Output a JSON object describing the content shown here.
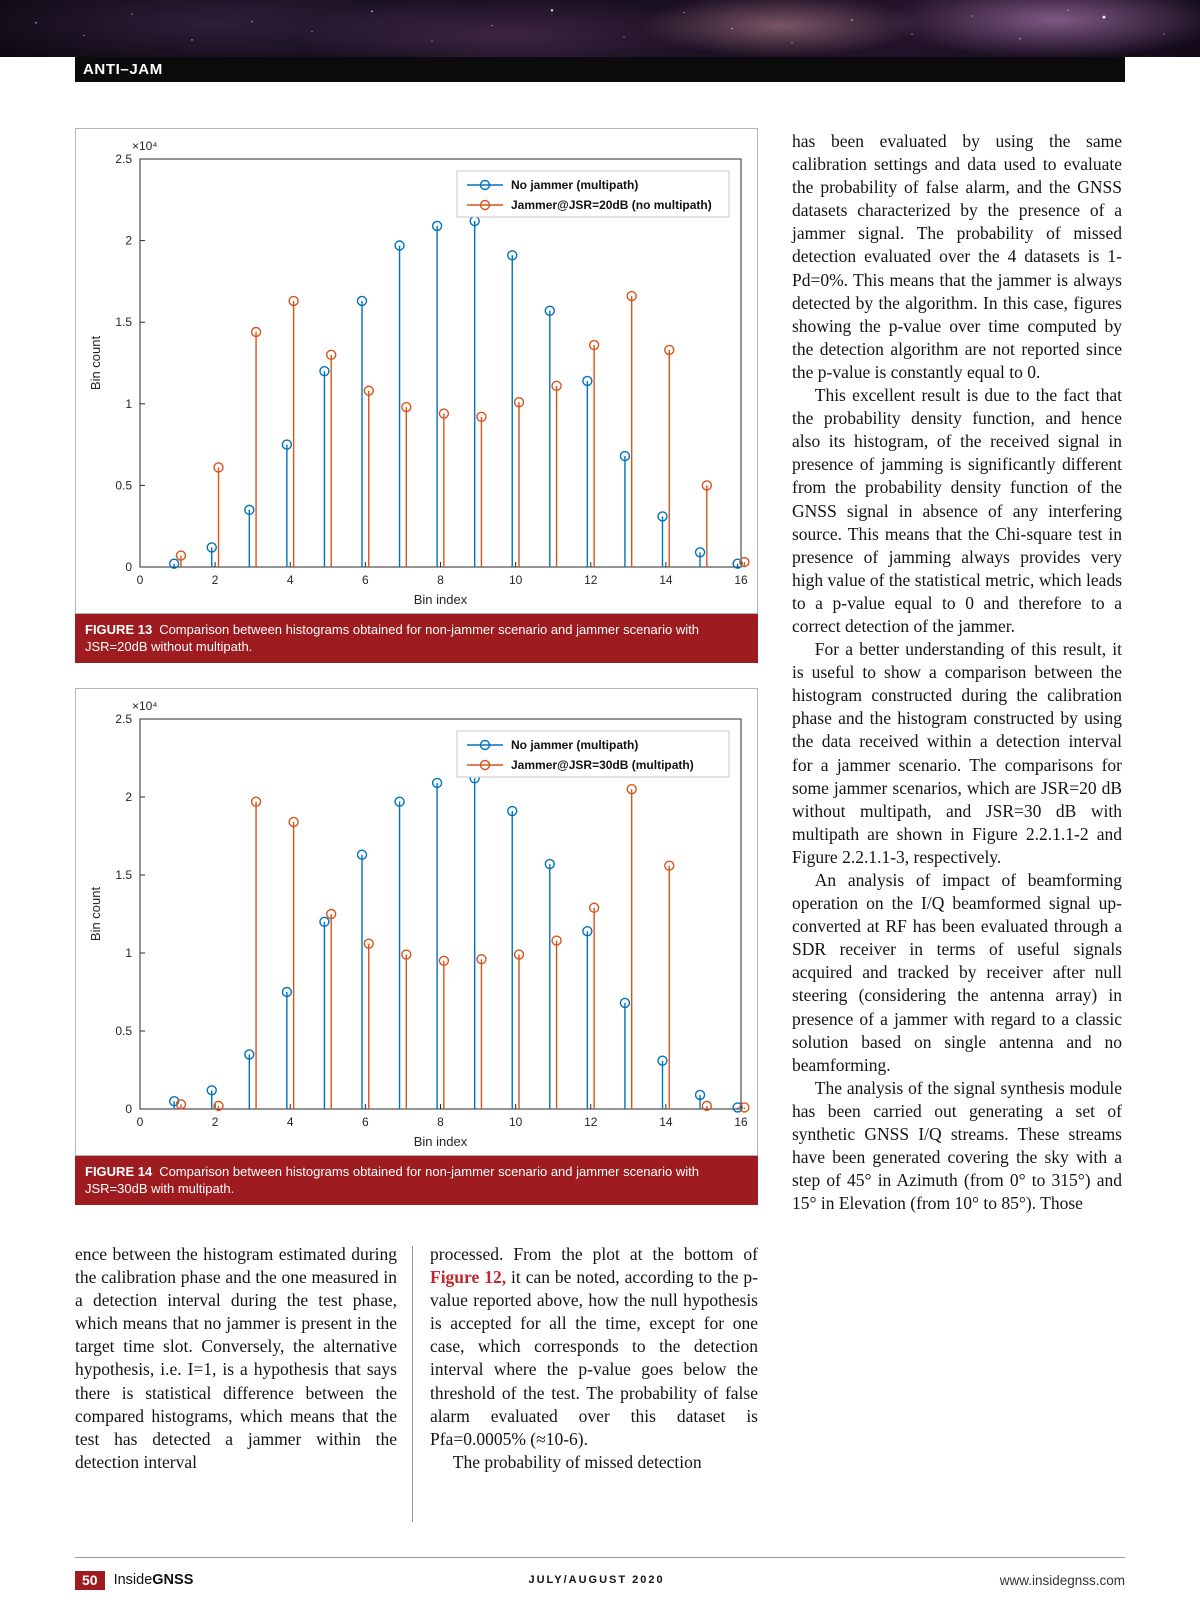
{
  "header": {
    "section_label": "ANTI–JAM"
  },
  "figures": [
    {
      "label": "FIGURE 13",
      "caption": "Comparison between histograms obtained for non-jammer scenario and jammer scenario with JSR=20dB without multipath."
    },
    {
      "label": "FIGURE 14",
      "caption": "Comparison between histograms obtained for non-jammer scenario and jammer scenario with JSR=30dB with multipath."
    }
  ],
  "chart_data": [
    {
      "type": "stem",
      "title": "",
      "xlabel": "Bin index",
      "ylabel": "Bin count",
      "y_exponent_label": "×10⁴",
      "xlim": [
        0,
        16
      ],
      "ylim": [
        0,
        2.5
      ],
      "xticks": [
        0,
        2,
        4,
        6,
        8,
        10,
        12,
        14,
        16
      ],
      "yticks": [
        0,
        0.5,
        1,
        1.5,
        2,
        2.5
      ],
      "legend_position": "top-right",
      "x": [
        1,
        2,
        3,
        4,
        5,
        6,
        7,
        8,
        9,
        10,
        11,
        12,
        13,
        14,
        15,
        16
      ],
      "series": [
        {
          "name": "No jammer (multipath)",
          "color": "#0072BD",
          "values": [
            0.02,
            0.12,
            0.35,
            0.75,
            1.2,
            1.63,
            1.97,
            2.09,
            2.12,
            1.91,
            1.57,
            1.14,
            0.68,
            0.31,
            0.09,
            0.02
          ]
        },
        {
          "name": "Jammer@JSR=20dB (no multipath)",
          "color": "#D95319",
          "values": [
            0.07,
            0.61,
            1.44,
            1.63,
            1.3,
            1.08,
            0.98,
            0.94,
            0.92,
            1.01,
            1.11,
            1.36,
            1.66,
            1.33,
            0.5,
            0.03
          ]
        }
      ]
    },
    {
      "type": "stem",
      "title": "",
      "xlabel": "Bin index",
      "ylabel": "Bin count",
      "y_exponent_label": "×10⁴",
      "xlim": [
        0,
        16
      ],
      "ylim": [
        0,
        2.5
      ],
      "xticks": [
        0,
        2,
        4,
        6,
        8,
        10,
        12,
        14,
        16
      ],
      "yticks": [
        0,
        0.5,
        1,
        1.5,
        2,
        2.5
      ],
      "legend_position": "top-right",
      "x": [
        1,
        2,
        3,
        4,
        5,
        6,
        7,
        8,
        9,
        10,
        11,
        12,
        13,
        14,
        15,
        16
      ],
      "series": [
        {
          "name": "No jammer (multipath)",
          "color": "#0072BD",
          "values": [
            0.05,
            0.12,
            0.35,
            0.75,
            1.2,
            1.63,
            1.97,
            2.09,
            2.12,
            1.91,
            1.57,
            1.14,
            0.68,
            0.31,
            0.09,
            0.01
          ]
        },
        {
          "name": "Jammer@JSR=30dB (multipath)",
          "color": "#D95319",
          "values": [
            0.03,
            0.02,
            1.97,
            1.84,
            1.25,
            1.06,
            0.99,
            0.95,
            0.96,
            0.99,
            1.08,
            1.29,
            2.05,
            1.56,
            0.02,
            0.01
          ]
        }
      ]
    }
  ],
  "columns": {
    "right": {
      "paragraphs": [
        "has been evaluated by using the same calibration settings and data used to evaluate the probability of false alarm, and the GNSS datasets characterized by the presence of a jammer signal. The probability of missed detection evaluated over the 4 datasets is 1-Pd=0%. This means that the jammer is always detected by the algorithm. In this case, figures showing the p-value over time computed by the detection algorithm are not reported since the p-value is constantly equal to 0.",
        "This excellent result is due to the fact that the probability density function, and hence also its histogram, of the received signal in presence of jamming is significantly different from the probability density function of the GNSS signal in absence of any interfering source. This means that the Chi-square test in presence of jamming always provides very high value of the statistical metric, which leads to a p-value equal to 0 and therefore to a correct detection of the jammer.",
        "For a better understanding of this result, it is useful to show a comparison between the histogram constructed during the calibration phase and the histogram constructed by using the data received within a detection interval for a jammer scenario. The comparisons for some jammer scenarios, which are JSR=20 dB without multipath, and JSR=30 dB with multipath are shown in Figure 2.2.1.1-2 and Figure 2.2.1.1-3, respectively.",
        "An analysis of impact of beamforming operation on the I/Q beamformed signal up-converted at RF has been evaluated through a SDR receiver in terms of useful signals acquired and tracked by receiver after null steering (considering the antenna array) in presence of a jammer with regard to a classic solution based on single antenna and no beamforming.",
        "The analysis of the signal synthesis module has been carried out generating a set of synthetic GNSS I/Q streams. These streams have been generated covering the sky with a step of 45° in Azimuth (from 0° to 315°) and 15° in Elevation (from 10° to 85°). Those"
      ]
    },
    "bottom_left": {
      "paragraphs": [
        "ence between the histogram estimated during the calibration phase and the one measured in a detection interval during the test phase, which means that no jammer is present in the target time slot. Conversely, the alternative hypothesis, i.e. I=1, is a hypothesis that says there is statistical difference between the compared histograms, which means that the test has detected a jammer within the detection interval"
      ]
    },
    "bottom_middle": {
      "p1_pre": "processed. From the plot at the bottom of ",
      "p1_link": "Figure 12,",
      "p1_post": " it can be noted, according to the p-value reported above, how the null hypothesis is accepted for all the time, except for one case, which corresponds to the detection interval where the p-value goes below the threshold of the test. The probability of false alarm evaluated over this dataset is Pfa=0.0005% (≈10-6).",
      "p2": "The probability of missed detection"
    }
  },
  "footer": {
    "page_number": "50",
    "brand_prefix": "Inside",
    "brand_suffix": "GNSS",
    "issue": "JULY/AUGUST 2020",
    "website": "www.insidegnss.com"
  },
  "colors": {
    "accent_red": "#9e1b1f",
    "stem_blue": "#0072BD",
    "stem_orange": "#D95319"
  }
}
